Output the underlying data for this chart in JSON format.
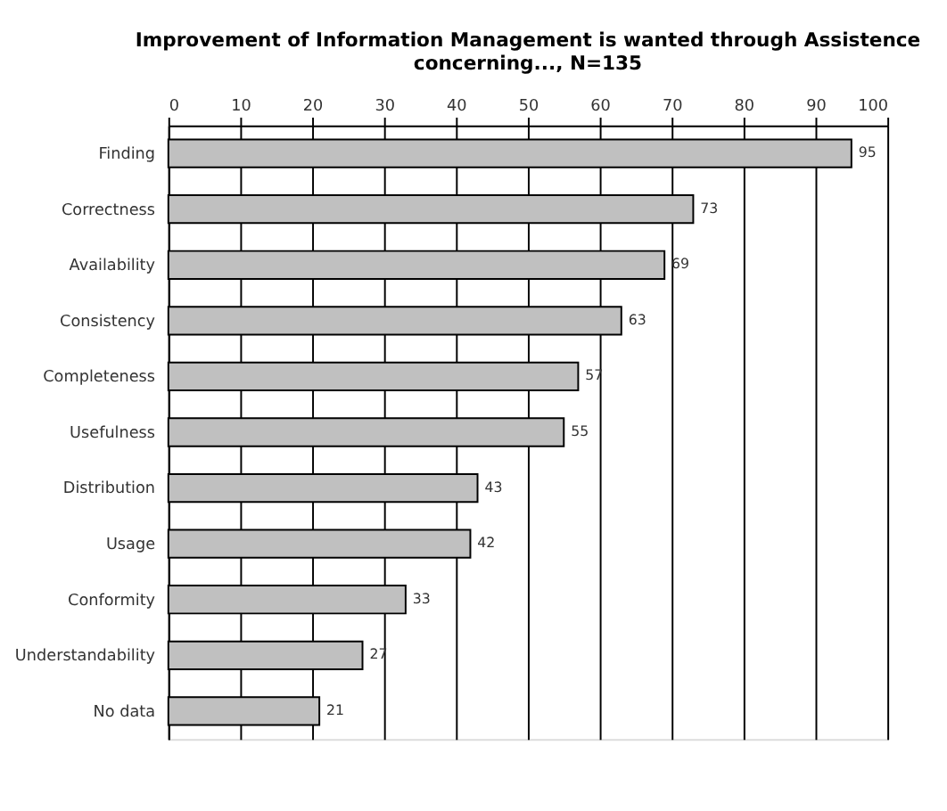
{
  "chart_data": {
    "type": "bar",
    "orientation": "horizontal",
    "title": "Improvement of Information Management is wanted through Assistence concerning..., N=135",
    "categories": [
      "Finding",
      "Correctness",
      "Availability",
      "Consistency",
      "Completeness",
      "Usefulness",
      "Distribution",
      "Usage",
      "Conformity",
      "Understandability",
      "No data"
    ],
    "values": [
      95,
      73,
      69,
      63,
      57,
      55,
      43,
      42,
      33,
      27,
      21
    ],
    "color": "#c0c0c0",
    "xlim": [
      0,
      100
    ],
    "xticks": [
      0,
      10,
      20,
      30,
      40,
      50,
      60,
      70,
      80,
      90,
      100
    ],
    "grid": "x",
    "data_labels": true
  }
}
